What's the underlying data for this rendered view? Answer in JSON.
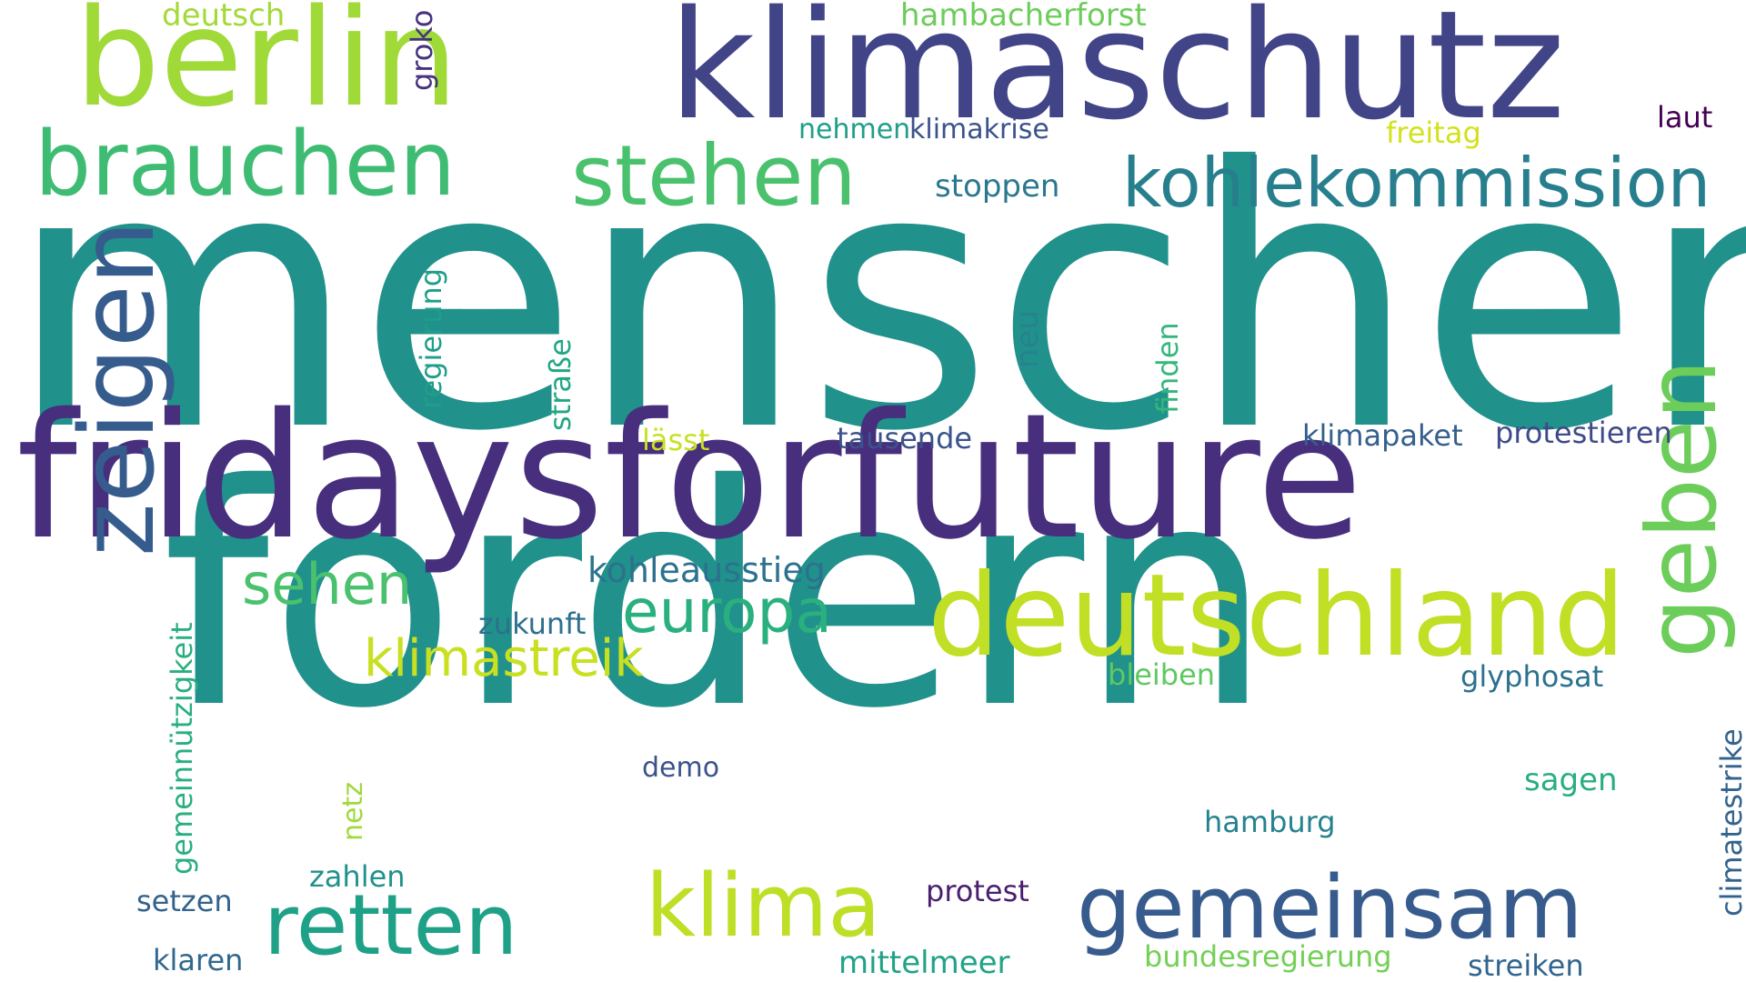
{
  "words": [
    {
      "id": "menschen",
      "text": "menschen",
      "color": "#21918c",
      "rotated": false
    },
    {
      "id": "fordern",
      "text": "fordern",
      "color": "#21918c",
      "rotated": false
    },
    {
      "id": "fridaysforfuture",
      "text": "fridaysforfuture",
      "color": "#472f7d",
      "rotated": false
    },
    {
      "id": "klimaschutz",
      "text": "klimaschutz",
      "color": "#414487",
      "rotated": false
    },
    {
      "id": "berlin",
      "text": "berlin",
      "color": "#a0da39",
      "rotated": false
    },
    {
      "id": "deutschland",
      "text": "deutschland",
      "color": "#c0df25",
      "rotated": false
    },
    {
      "id": "brauchen",
      "text": "brauchen",
      "color": "#3fbc73",
      "rotated": false
    },
    {
      "id": "stehen",
      "text": "stehen",
      "color": "#4ac16d",
      "rotated": false
    },
    {
      "id": "kohlekommission",
      "text": "kohlekommission",
      "color": "#277f8e",
      "rotated": false
    },
    {
      "id": "zeigen",
      "text": "zeigen",
      "color": "#365c8d",
      "rotated": true
    },
    {
      "id": "gemeinsam",
      "text": "gemeinsam",
      "color": "#375b8d",
      "rotated": false
    },
    {
      "id": "retten",
      "text": "retten",
      "color": "#1fa187",
      "rotated": false
    },
    {
      "id": "klima",
      "text": "klima",
      "color": "#bddf26",
      "rotated": false
    },
    {
      "id": "geben",
      "text": "geben",
      "color": "#6ccd5a",
      "rotated": true
    },
    {
      "id": "europa",
      "text": "europa",
      "color": "#2ab07f",
      "rotated": false
    },
    {
      "id": "sehen",
      "text": "sehen",
      "color": "#4ac16d",
      "rotated": false
    },
    {
      "id": "klimastreik",
      "text": "klimastreik",
      "color": "#c8e020",
      "rotated": false
    },
    {
      "id": "kohleausstieg",
      "text": "kohleausstieg",
      "color": "#2c728e",
      "rotated": false
    },
    {
      "id": "hambacherforst",
      "text": "hambacherforst",
      "color": "#6ccd5a",
      "rotated": false
    },
    {
      "id": "deutsch",
      "text": "deutsch",
      "color": "#a2da37",
      "rotated": false
    },
    {
      "id": "groko",
      "text": "groko",
      "color": "#46327e",
      "rotated": true
    },
    {
      "id": "nehmen",
      "text": "nehmen",
      "color": "#1f9e89",
      "rotated": false
    },
    {
      "id": "klimakrise",
      "text": "klimakrise",
      "color": "#3b528b",
      "rotated": false
    },
    {
      "id": "freitag",
      "text": "freitag",
      "color": "#d2e21b",
      "rotated": false
    },
    {
      "id": "laut",
      "text": "laut",
      "color": "#440154",
      "rotated": false
    },
    {
      "id": "stoppen",
      "text": "stoppen",
      "color": "#2a788e",
      "rotated": false
    },
    {
      "id": "regierung",
      "text": "regierung",
      "color": "#1f9e89",
      "rotated": true
    },
    {
      "id": "strasse",
      "text": "straße",
      "color": "#22a785",
      "rotated": true
    },
    {
      "id": "neu",
      "text": "neu",
      "color": "#26828e",
      "rotated": true
    },
    {
      "id": "finden",
      "text": "finden",
      "color": "#35b779",
      "rotated": true
    },
    {
      "id": "laesst",
      "text": "lässt",
      "color": "#c8e020",
      "rotated": false
    },
    {
      "id": "tausende",
      "text": "tausende",
      "color": "#3b528b",
      "rotated": false
    },
    {
      "id": "klimapaket",
      "text": "klimapaket",
      "color": "#355f8d",
      "rotated": false
    },
    {
      "id": "protestieren",
      "text": "protestieren",
      "color": "#3e4a89",
      "rotated": false
    },
    {
      "id": "gemeinnuetzigkeit",
      "text": "gemeinnützigkeit",
      "color": "#29af7f",
      "rotated": true
    },
    {
      "id": "zukunft",
      "text": "zukunft",
      "color": "#2d708e",
      "rotated": false
    },
    {
      "id": "bleiben",
      "text": "bleiben",
      "color": "#5ec962",
      "rotated": false
    },
    {
      "id": "glyphosat",
      "text": "glyphosat",
      "color": "#2c718e",
      "rotated": false
    },
    {
      "id": "climatestrike",
      "text": "climatestrike",
      "color": "#33638d",
      "rotated": true
    },
    {
      "id": "demo",
      "text": "demo",
      "color": "#3b528b",
      "rotated": false
    },
    {
      "id": "netz",
      "text": "netz",
      "color": "#9fda3a",
      "rotated": true
    },
    {
      "id": "sagen",
      "text": "sagen",
      "color": "#28ae80",
      "rotated": false
    },
    {
      "id": "hamburg",
      "text": "hamburg",
      "color": "#26828e",
      "rotated": false
    },
    {
      "id": "zahlen",
      "text": "zahlen",
      "color": "#21918c",
      "rotated": false
    },
    {
      "id": "protest",
      "text": "protest",
      "color": "#481f70",
      "rotated": false
    },
    {
      "id": "setzen",
      "text": "setzen",
      "color": "#33638d",
      "rotated": false
    },
    {
      "id": "klaren",
      "text": "klaren",
      "color": "#31688e",
      "rotated": false
    },
    {
      "id": "mittelmeer",
      "text": "mittelmeer",
      "color": "#20a386",
      "rotated": false
    },
    {
      "id": "bundesregierung",
      "text": "bundesregierung",
      "color": "#73d056",
      "rotated": false
    },
    {
      "id": "streiken",
      "text": "streiken",
      "color": "#32658e",
      "rotated": false
    }
  ]
}
